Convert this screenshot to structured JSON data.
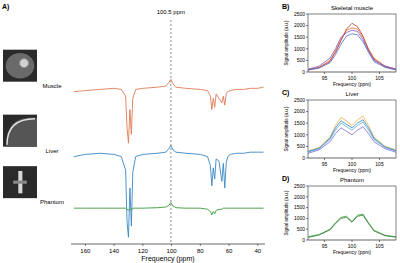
{
  "chart_data": [
    {
      "type": "line",
      "panel_label": "A)",
      "x_label": "Frequency (ppm)",
      "x": [
        168,
        160,
        150,
        140,
        135,
        132,
        131,
        130,
        129,
        128,
        127,
        125,
        120,
        110,
        104,
        102,
        100.5,
        99,
        97,
        90,
        80,
        75,
        73,
        72,
        71,
        70,
        69,
        67,
        65,
        64,
        63,
        62,
        61,
        59,
        55,
        50,
        45,
        40,
        36
      ],
      "series": [
        {
          "name": "Muscle",
          "color": "#e07b53",
          "values": [
            6.8,
            6.85,
            6.9,
            6.95,
            6.9,
            6.6,
            5.2,
            4.5,
            6.0,
            4.9,
            6.5,
            6.9,
            6.95,
            7.0,
            7.05,
            7.2,
            7.35,
            7.15,
            7.0,
            6.95,
            6.9,
            6.85,
            6.6,
            6.0,
            6.5,
            6.1,
            6.7,
            6.5,
            6.3,
            6.6,
            6.2,
            6.7,
            6.8,
            6.85,
            6.9,
            6.9,
            6.95,
            6.95,
            7.0
          ]
        },
        {
          "name": "Liver",
          "color": "#3b87c4",
          "values": [
            3.9,
            4.0,
            4.05,
            4.0,
            3.9,
            3.3,
            1.0,
            0.3,
            2.5,
            0.8,
            3.2,
            3.9,
            4.0,
            4.05,
            4.1,
            4.25,
            4.4,
            4.2,
            4.1,
            4.05,
            4.0,
            3.9,
            3.5,
            2.6,
            3.4,
            2.9,
            3.8,
            3.7,
            2.8,
            3.6,
            2.5,
            3.6,
            3.9,
            4.0,
            4.05,
            4.05,
            4.1,
            4.1,
            4.1
          ]
        },
        {
          "name": "Phantom",
          "color": "#3a9a3a",
          "values": [
            1.6,
            1.6,
            1.6,
            1.6,
            1.6,
            1.6,
            1.55,
            1.5,
            1.58,
            1.52,
            1.6,
            1.6,
            1.6,
            1.62,
            1.65,
            1.72,
            1.85,
            1.7,
            1.62,
            1.6,
            1.6,
            1.55,
            1.45,
            1.3,
            1.45,
            1.35,
            1.5,
            1.55,
            1.55,
            1.6,
            1.6,
            1.6,
            1.6,
            1.6,
            1.6,
            1.6,
            1.6,
            1.6,
            1.6
          ]
        }
      ],
      "xlim": [
        170,
        35
      ],
      "xticks": [
        160,
        140,
        120,
        100,
        80,
        60,
        40
      ],
      "ylim": [
        0,
        10
      ],
      "tick_labels": "x",
      "annotations": [
        {
          "x": 100.5,
          "text": "100.5 ppm",
          "line_style": "dashed"
        }
      ]
    },
    {
      "type": "line",
      "panel_label": "B)",
      "title": "Skeletal muscle",
      "x_label": "Frequency (ppm)",
      "y_label": "Signal amplitude (a.u.)",
      "x": [
        92,
        94,
        96,
        97,
        98,
        99,
        100,
        101,
        102,
        103,
        104,
        106,
        108
      ],
      "series": [
        {
          "color": "#e8702a",
          "values": [
            100,
            200,
            500,
            900,
            1400,
            1800,
            1900,
            1850,
            1500,
            1000,
            600,
            250,
            120
          ]
        },
        {
          "color": "#c0392b",
          "values": [
            80,
            180,
            450,
            850,
            1350,
            1850,
            2100,
            1950,
            1550,
            950,
            550,
            220,
            100
          ]
        },
        {
          "color": "#7e57c2",
          "values": [
            120,
            250,
            600,
            1000,
            1500,
            1700,
            1800,
            1750,
            1400,
            900,
            500,
            260,
            130
          ]
        },
        {
          "color": "#4a6fd1",
          "values": [
            90,
            170,
            400,
            750,
            1200,
            1550,
            1650,
            1600,
            1300,
            850,
            450,
            200,
            90
          ]
        }
      ],
      "xlim": [
        92,
        108
      ],
      "xticks": [
        95,
        100,
        105
      ],
      "ylim": [
        0,
        2500
      ],
      "yticks": [
        0,
        500,
        1000,
        1500,
        2000,
        2500
      ]
    },
    {
      "type": "line",
      "panel_label": "C)",
      "title": "Liver",
      "x_label": "Frequency (ppm)",
      "y_label": "Signal amplitude (a.u.)",
      "x": [
        92,
        94,
        96,
        97,
        98,
        99,
        100,
        101,
        102,
        103,
        104,
        106,
        108
      ],
      "series": [
        {
          "color": "#f5b041",
          "values": [
            300,
            450,
            900,
            1400,
            1750,
            1600,
            1400,
            1650,
            1800,
            1400,
            900,
            500,
            350
          ]
        },
        {
          "color": "#5dade2",
          "values": [
            250,
            400,
            800,
            1200,
            1500,
            1350,
            1200,
            1400,
            1550,
            1200,
            800,
            450,
            300
          ]
        },
        {
          "color": "#7d6bd6",
          "values": [
            200,
            350,
            700,
            1050,
            1300,
            1150,
            1000,
            1200,
            1350,
            1050,
            700,
            400,
            250
          ]
        },
        {
          "color": "#2e86c1",
          "values": [
            280,
            420,
            850,
            1300,
            1600,
            1450,
            1300,
            1500,
            1650,
            1300,
            850,
            480,
            320
          ]
        }
      ],
      "xlim": [
        92,
        108
      ],
      "xticks": [
        95,
        100,
        105
      ],
      "ylim": [
        0,
        2500
      ],
      "yticks": [
        0,
        500,
        1000,
        1500,
        2000,
        2500
      ]
    },
    {
      "type": "line",
      "panel_label": "D)",
      "title": "Phantom",
      "x_label": "Frequency (ppm)",
      "y_label": "Signal amplitude (a.u.)",
      "x": [
        92,
        94,
        96,
        97,
        98,
        99,
        100,
        101,
        102,
        103,
        104,
        106,
        108
      ],
      "series": [
        {
          "color": "#3a9a3a",
          "values": [
            150,
            250,
            500,
            800,
            1050,
            1100,
            850,
            1150,
            1200,
            800,
            450,
            220,
            150
          ]
        },
        {
          "color": "#2e7d32",
          "values": [
            120,
            230,
            470,
            760,
            1000,
            1050,
            820,
            1100,
            1150,
            760,
            420,
            200,
            130
          ]
        }
      ],
      "xlim": [
        92,
        108
      ],
      "xticks": [
        95,
        100,
        105
      ],
      "ylim": [
        0,
        2500
      ],
      "yticks": [
        0,
        500,
        1000,
        1500,
        2000,
        2500
      ]
    }
  ]
}
